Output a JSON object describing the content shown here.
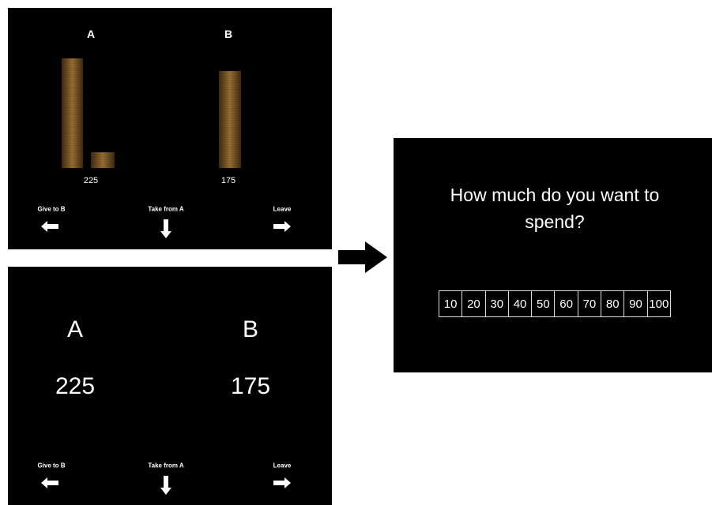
{
  "panels": [
    {
      "labels": [
        "A",
        "B"
      ],
      "amounts": [
        225,
        175
      ],
      "options": [
        "Give to B",
        "Take from A",
        "Leave"
      ]
    },
    {
      "labels": [
        "A",
        "B"
      ],
      "amounts": [
        225,
        175
      ],
      "options": [
        "Give to B",
        "Take from A",
        "Leave"
      ]
    }
  ],
  "question": {
    "text": "How much do you want to spend?",
    "scale": [
      "10",
      "20",
      "30",
      "40",
      "50",
      "60",
      "70",
      "80",
      "90",
      "100"
    ]
  }
}
